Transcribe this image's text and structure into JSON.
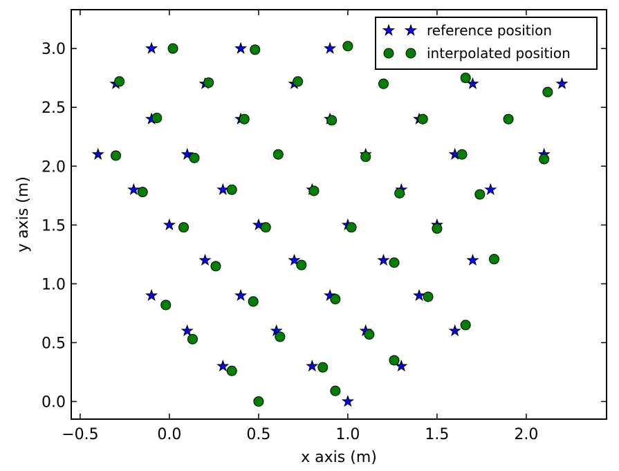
{
  "chart_data": {
    "type": "scatter",
    "xlabel": "x axis (m)",
    "ylabel": "y axis (m)",
    "xlim": [
      -0.55,
      2.45
    ],
    "ylim": [
      -0.15,
      3.33
    ],
    "xticks": [
      -0.5,
      0.0,
      0.5,
      1.0,
      1.5,
      2.0
    ],
    "xtick_labels": [
      "−0.5",
      "0.0",
      "0.5",
      "1.0",
      "1.5",
      "2.0"
    ],
    "yticks": [
      0.0,
      0.5,
      1.0,
      1.5,
      2.0,
      2.5,
      3.0
    ],
    "ytick_labels": [
      "0.0",
      "0.5",
      "1.0",
      "1.5",
      "2.0",
      "2.5",
      "3.0"
    ],
    "grid": false,
    "legend": {
      "position": "top-right"
    },
    "series": [
      {
        "name": "reference position",
        "marker": "star",
        "color": "#0000ff",
        "points": [
          [
            -0.1,
            3.0
          ],
          [
            0.4,
            3.0
          ],
          [
            0.9,
            3.0
          ],
          [
            -0.3,
            2.7
          ],
          [
            0.2,
            2.7
          ],
          [
            0.7,
            2.7
          ],
          [
            1.7,
            2.7
          ],
          [
            2.2,
            2.7
          ],
          [
            -0.1,
            2.4
          ],
          [
            0.4,
            2.4
          ],
          [
            0.9,
            2.4
          ],
          [
            1.4,
            2.4
          ],
          [
            -0.4,
            2.1
          ],
          [
            0.1,
            2.1
          ],
          [
            1.1,
            2.1
          ],
          [
            1.6,
            2.1
          ],
          [
            2.1,
            2.1
          ],
          [
            -0.2,
            1.8
          ],
          [
            0.3,
            1.8
          ],
          [
            0.8,
            1.8
          ],
          [
            1.3,
            1.8
          ],
          [
            1.8,
            1.8
          ],
          [
            0.0,
            1.5
          ],
          [
            0.5,
            1.5
          ],
          [
            1.0,
            1.5
          ],
          [
            1.5,
            1.5
          ],
          [
            0.2,
            1.2
          ],
          [
            0.7,
            1.2
          ],
          [
            1.2,
            1.2
          ],
          [
            1.7,
            1.2
          ],
          [
            -0.1,
            0.9
          ],
          [
            0.4,
            0.9
          ],
          [
            0.9,
            0.9
          ],
          [
            1.4,
            0.9
          ],
          [
            0.1,
            0.6
          ],
          [
            0.6,
            0.6
          ],
          [
            1.1,
            0.6
          ],
          [
            1.6,
            0.6
          ],
          [
            0.3,
            0.3
          ],
          [
            0.8,
            0.3
          ],
          [
            1.3,
            0.3
          ],
          [
            1.0,
            0.0
          ]
        ]
      },
      {
        "name": "interpolated position",
        "marker": "circle",
        "color": "#008000",
        "points": [
          [
            0.02,
            3.0
          ],
          [
            0.48,
            2.99
          ],
          [
            1.0,
            3.02
          ],
          [
            -0.28,
            2.72
          ],
          [
            0.22,
            2.71
          ],
          [
            0.72,
            2.72
          ],
          [
            1.2,
            2.7
          ],
          [
            1.66,
            2.75
          ],
          [
            2.12,
            2.63
          ],
          [
            -0.07,
            2.41
          ],
          [
            0.42,
            2.4
          ],
          [
            0.91,
            2.39
          ],
          [
            1.42,
            2.4
          ],
          [
            1.9,
            2.4
          ],
          [
            -0.3,
            2.09
          ],
          [
            0.14,
            2.07
          ],
          [
            0.61,
            2.1
          ],
          [
            1.1,
            2.08
          ],
          [
            1.64,
            2.1
          ],
          [
            2.1,
            2.06
          ],
          [
            -0.15,
            1.78
          ],
          [
            0.35,
            1.8
          ],
          [
            0.81,
            1.79
          ],
          [
            1.29,
            1.77
          ],
          [
            1.74,
            1.76
          ],
          [
            0.08,
            1.48
          ],
          [
            0.54,
            1.48
          ],
          [
            1.02,
            1.48
          ],
          [
            1.5,
            1.47
          ],
          [
            0.26,
            1.15
          ],
          [
            0.74,
            1.16
          ],
          [
            1.26,
            1.18
          ],
          [
            1.82,
            1.21
          ],
          [
            -0.02,
            0.82
          ],
          [
            0.47,
            0.85
          ],
          [
            0.93,
            0.87
          ],
          [
            1.45,
            0.89
          ],
          [
            0.13,
            0.53
          ],
          [
            0.62,
            0.55
          ],
          [
            1.12,
            0.57
          ],
          [
            1.66,
            0.65
          ],
          [
            0.35,
            0.26
          ],
          [
            0.86,
            0.29
          ],
          [
            1.26,
            0.35
          ],
          [
            0.5,
            0.0
          ],
          [
            0.93,
            0.09
          ]
        ]
      }
    ]
  }
}
